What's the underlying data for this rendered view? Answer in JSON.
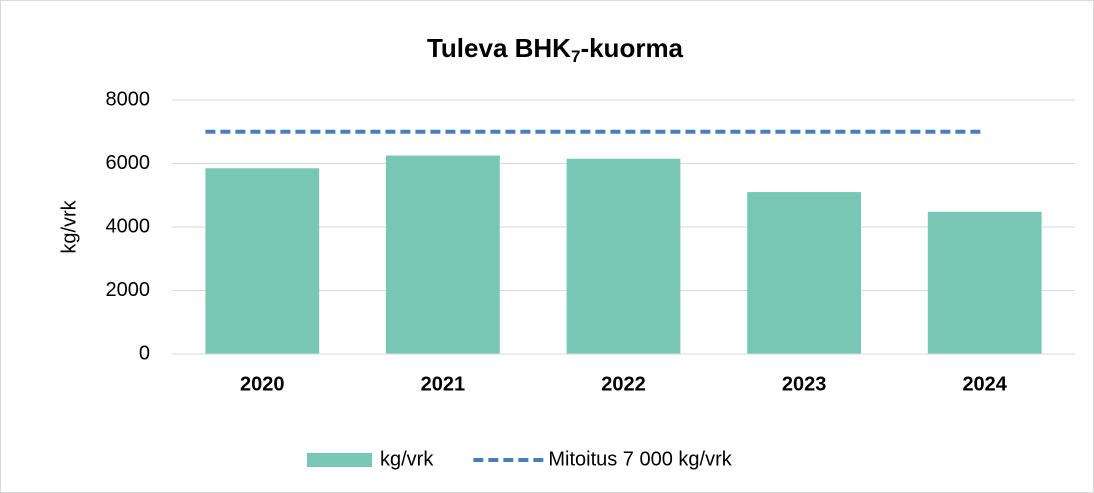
{
  "chart_data": {
    "type": "bar",
    "title": [
      "Tuleva BHK",
      "7",
      "-kuorma"
    ],
    "y_label": "kg/vrk",
    "categories": [
      "2020",
      "2021",
      "2022",
      "2023",
      "2024"
    ],
    "series": [
      {
        "name": "kg/vrk",
        "type": "bar",
        "color": "#78c7b4",
        "values": [
          5850,
          6250,
          6150,
          5100,
          4480
        ]
      },
      {
        "name": "Mitoitus 7 000 kg/vrk",
        "type": "line",
        "color": "#4a7ebb",
        "values": [
          7000,
          7000,
          7000,
          7000,
          7000
        ]
      }
    ],
    "ylim": [
      0,
      8000
    ],
    "yticks": [
      0,
      2000,
      4000,
      6000,
      8000
    ],
    "grid": true,
    "legend": "bottom"
  }
}
